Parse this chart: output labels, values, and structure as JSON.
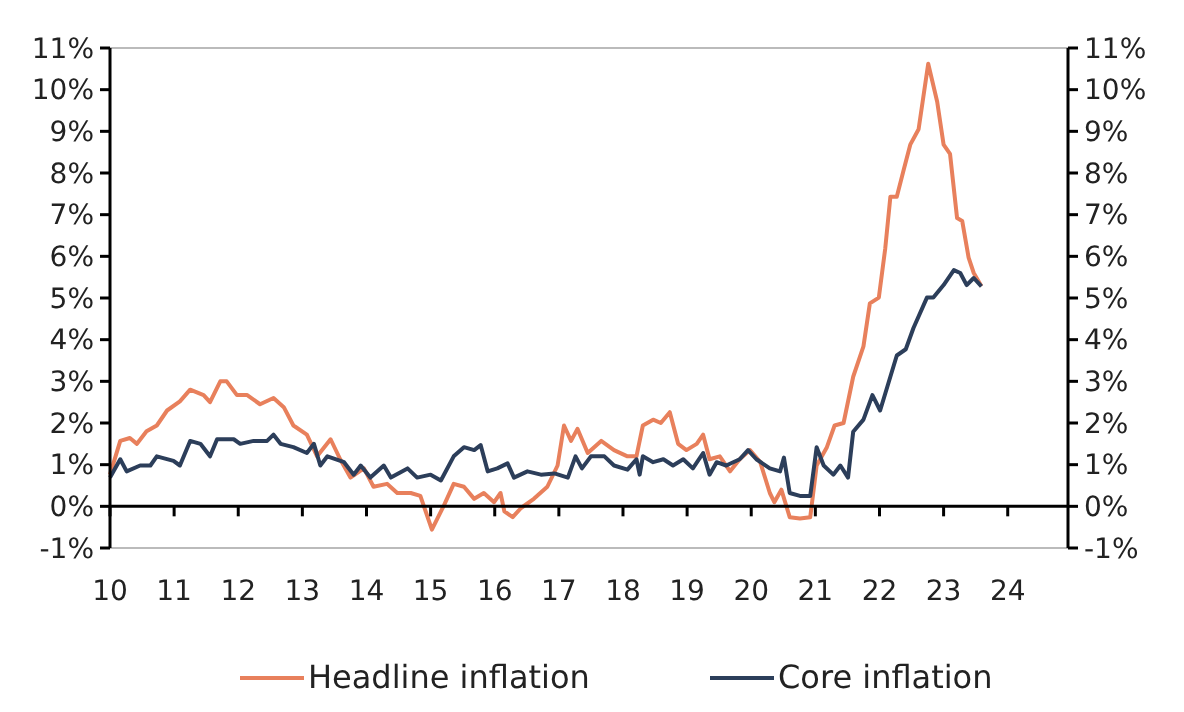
{
  "chart_data": {
    "type": "line",
    "legend": "bottom",
    "line_style": "solid",
    "xlim": [
      2010,
      2024.94
    ],
    "xticks": [
      {
        "value": 2010,
        "label": "10"
      },
      {
        "value": 2011,
        "label": "11"
      },
      {
        "value": 2012,
        "label": "12"
      },
      {
        "value": 2013,
        "label": "13"
      },
      {
        "value": 2014,
        "label": "14"
      },
      {
        "value": 2015,
        "label": "15"
      },
      {
        "value": 2016,
        "label": "16"
      },
      {
        "value": 2017,
        "label": "17"
      },
      {
        "value": 2018,
        "label": "18"
      },
      {
        "value": 2019,
        "label": "19"
      },
      {
        "value": 2020,
        "label": "20"
      },
      {
        "value": 2021,
        "label": "21"
      },
      {
        "value": 2022,
        "label": "22"
      },
      {
        "value": 2023,
        "label": "23"
      },
      {
        "value": 2024,
        "label": "24"
      }
    ],
    "ylim": [
      -1,
      11
    ],
    "yticks": [
      {
        "value": -1,
        "label": "-1%"
      },
      {
        "value": 0,
        "label": "0%"
      },
      {
        "value": 1,
        "label": "1%"
      },
      {
        "value": 2,
        "label": "2%"
      },
      {
        "value": 3,
        "label": "3%"
      },
      {
        "value": 4,
        "label": "4%"
      },
      {
        "value": 5,
        "label": "5%"
      },
      {
        "value": 6,
        "label": "6%"
      },
      {
        "value": 7,
        "label": "7%"
      },
      {
        "value": 8,
        "label": "8%"
      },
      {
        "value": 9,
        "label": "9%"
      },
      {
        "value": 10,
        "label": "10%"
      },
      {
        "value": 11,
        "label": "11%"
      }
    ],
    "y2lim": [
      -1,
      11
    ],
    "y2ticks": [
      {
        "value": -1,
        "label": "-1%"
      },
      {
        "value": 0,
        "label": "0%"
      },
      {
        "value": 1,
        "label": "1%"
      },
      {
        "value": 2,
        "label": "2%"
      },
      {
        "value": 3,
        "label": "3%"
      },
      {
        "value": 4,
        "label": "4%"
      },
      {
        "value": 5,
        "label": "5%"
      },
      {
        "value": 6,
        "label": "6%"
      },
      {
        "value": 7,
        "label": "7%"
      },
      {
        "value": 8,
        "label": "8%"
      },
      {
        "value": 9,
        "label": "9%"
      },
      {
        "value": 10,
        "label": "10%"
      },
      {
        "value": 11,
        "label": "11%"
      }
    ],
    "series": [
      {
        "name": "Headline inflation",
        "color": "#e8805c",
        "x": [
          2010.0,
          2010.16,
          2010.31,
          2010.42,
          2010.57,
          2010.73,
          2010.89,
          2011.09,
          2011.25,
          2011.46,
          2011.56,
          2011.72,
          2011.82,
          2011.98,
          2012.14,
          2012.34,
          2012.55,
          2012.71,
          2012.86,
          2013.07,
          2013.23,
          2013.44,
          2013.59,
          2013.75,
          2013.96,
          2014.11,
          2014.32,
          2014.48,
          2014.69,
          2014.84,
          2015.02,
          2015.21,
          2015.36,
          2015.52,
          2015.68,
          2015.83,
          2015.99,
          2016.09,
          2016.15,
          2016.28,
          2016.41,
          2016.61,
          2016.82,
          2016.98,
          2017.08,
          2017.19,
          2017.29,
          2017.45,
          2017.66,
          2017.86,
          2018.07,
          2018.21,
          2018.31,
          2018.47,
          2018.59,
          2018.73,
          2018.86,
          2018.99,
          2019.15,
          2019.25,
          2019.35,
          2019.51,
          2019.67,
          2019.82,
          2019.98,
          2020.14,
          2020.29,
          2020.36,
          2020.47,
          2020.6,
          2020.76,
          2020.92,
          2021.02,
          2021.18,
          2021.3,
          2021.44,
          2021.59,
          2021.75,
          2021.85,
          2021.99,
          2022.09,
          2022.17,
          2022.27,
          2022.38,
          2022.48,
          2022.61,
          2022.76,
          2022.9,
          2023.0,
          2023.1,
          2023.21,
          2023.29,
          2023.39,
          2023.47,
          2023.59
        ],
        "values": [
          0.76,
          1.57,
          1.64,
          1.5,
          1.8,
          1.94,
          2.3,
          2.52,
          2.8,
          2.67,
          2.5,
          3.0,
          3.0,
          2.67,
          2.67,
          2.45,
          2.6,
          2.38,
          1.94,
          1.72,
          1.2,
          1.61,
          1.13,
          0.69,
          0.91,
          0.47,
          0.54,
          0.32,
          0.32,
          0.25,
          -0.56,
          0.03,
          0.54,
          0.47,
          0.18,
          0.32,
          0.1,
          0.32,
          -0.12,
          -0.26,
          -0.04,
          0.18,
          0.47,
          0.98,
          1.94,
          1.57,
          1.86,
          1.28,
          1.57,
          1.35,
          1.2,
          1.2,
          1.94,
          2.08,
          2.0,
          2.26,
          1.5,
          1.35,
          1.5,
          1.72,
          1.13,
          1.2,
          0.84,
          1.13,
          1.35,
          1.06,
          0.32,
          0.1,
          0.4,
          -0.26,
          -0.29,
          -0.26,
          0.98,
          1.42,
          1.94,
          2.0,
          3.11,
          3.84,
          4.87,
          5.01,
          6.19,
          7.43,
          7.43,
          8.09,
          8.68,
          9.05,
          10.62,
          9.71,
          8.68,
          8.46,
          6.92,
          6.85,
          5.97,
          5.6,
          5.28
        ]
      },
      {
        "name": "Core inflation",
        "color": "#2c3e5a",
        "x": [
          2010.0,
          2010.16,
          2010.26,
          2010.47,
          2010.63,
          2010.73,
          2010.99,
          2011.09,
          2011.25,
          2011.41,
          2011.56,
          2011.67,
          2011.93,
          2012.03,
          2012.24,
          2012.45,
          2012.55,
          2012.66,
          2012.86,
          2013.07,
          2013.18,
          2013.28,
          2013.39,
          2013.65,
          2013.8,
          2013.91,
          2014.06,
          2014.27,
          2014.38,
          2014.64,
          2014.79,
          2015.0,
          2015.16,
          2015.36,
          2015.52,
          2015.68,
          2015.78,
          2015.89,
          2016.04,
          2016.2,
          2016.3,
          2016.51,
          2016.72,
          2016.93,
          2017.14,
          2017.26,
          2017.36,
          2017.5,
          2017.71,
          2017.86,
          2018.07,
          2018.21,
          2018.26,
          2018.31,
          2018.47,
          2018.63,
          2018.78,
          2018.94,
          2019.09,
          2019.25,
          2019.35,
          2019.46,
          2019.61,
          2019.82,
          2019.95,
          2020.08,
          2020.29,
          2020.45,
          2020.51,
          2020.6,
          2020.76,
          2020.92,
          2021.02,
          2021.13,
          2021.28,
          2021.39,
          2021.51,
          2021.59,
          2021.75,
          2021.89,
          2022.01,
          2022.14,
          2022.27,
          2022.41,
          2022.53,
          2022.74,
          2022.84,
          2023.0,
          2023.16,
          2023.26,
          2023.36,
          2023.47,
          2023.59
        ],
        "values": [
          0.69,
          1.13,
          0.84,
          0.98,
          0.98,
          1.2,
          1.09,
          0.98,
          1.57,
          1.5,
          1.2,
          1.61,
          1.61,
          1.5,
          1.57,
          1.57,
          1.72,
          1.5,
          1.42,
          1.28,
          1.5,
          0.98,
          1.2,
          1.06,
          0.76,
          0.98,
          0.69,
          0.98,
          0.69,
          0.91,
          0.69,
          0.76,
          0.62,
          1.2,
          1.42,
          1.35,
          1.47,
          0.84,
          0.91,
          1.03,
          0.69,
          0.84,
          0.76,
          0.79,
          0.69,
          1.2,
          0.91,
          1.2,
          1.2,
          0.98,
          0.88,
          1.13,
          0.76,
          1.2,
          1.06,
          1.13,
          0.98,
          1.13,
          0.91,
          1.28,
          0.76,
          1.06,
          0.98,
          1.13,
          1.35,
          1.13,
          0.91,
          0.84,
          1.17,
          0.32,
          0.25,
          0.25,
          1.42,
          0.98,
          0.76,
          0.98,
          0.69,
          1.79,
          2.08,
          2.67,
          2.3,
          2.96,
          3.62,
          3.77,
          4.28,
          5.01,
          5.01,
          5.31,
          5.67,
          5.6,
          5.31,
          5.48,
          5.28
        ]
      }
    ]
  }
}
